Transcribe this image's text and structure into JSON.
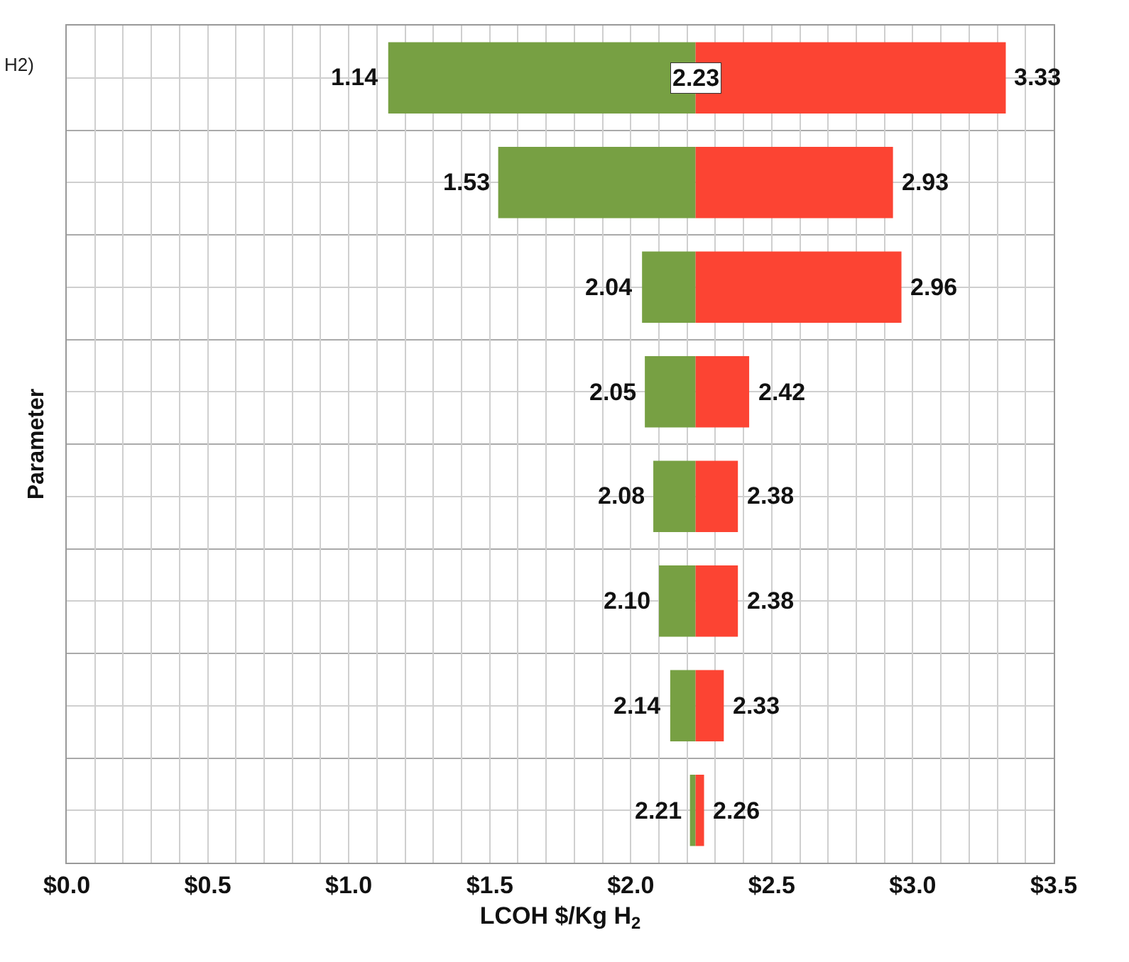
{
  "chart_data": {
    "type": "bar",
    "orientation": "horizontal",
    "stacked": false,
    "xlabel": "LCOH $/Kg H$_{2}$",
    "ylabel": "Parameter",
    "categories": [
      null,
      null,
      null,
      null,
      null,
      null,
      null,
      null
    ],
    "series": [
      {
        "color": "#77a043",
        "base": [
          2.23,
          2.23,
          2.23,
          2.23,
          2.23,
          2.23,
          2.23,
          2.23
        ],
        "values": [
          -1.09,
          -0.7,
          -0.19,
          -0.18,
          -0.15,
          -0.13,
          -0.09,
          -0.02
        ],
        "value_labels": [
          "1.14",
          "1.53",
          "2.04",
          "2.05",
          "2.08",
          "2.10",
          "2.14",
          "2.21"
        ]
      },
      {
        "color": "#fc4433",
        "base": [
          2.23,
          2.23,
          2.23,
          2.23,
          2.23,
          2.23,
          2.23,
          2.23
        ],
        "values": [
          1.1,
          0.7,
          0.73,
          0.19,
          0.15,
          0.15,
          0.1,
          0.03
        ],
        "value_labels": [
          "3.33",
          "2.93",
          "2.96",
          "2.42",
          "2.38",
          "2.38",
          "2.33",
          "2.26"
        ]
      }
    ],
    "annotations": [
      "H2)",
      {
        "text": "2.23",
        "x": 2.23
      }
    ],
    "xlim": [
      0,
      3.5
    ],
    "xticks": [
      {
        "value": 0,
        "label": "$0.0"
      },
      {
        "value": 0.1,
        "label": null
      },
      {
        "value": 0.2,
        "label": null
      },
      {
        "value": 0.3,
        "label": null
      },
      {
        "value": 0.4,
        "label": null
      },
      {
        "value": 0.5,
        "label": "$0.5"
      },
      {
        "value": 0.6,
        "label": null
      },
      {
        "value": 0.7,
        "label": null
      },
      {
        "value": 0.8,
        "label": null
      },
      {
        "value": 0.9,
        "label": null
      },
      {
        "value": 1.0,
        "label": "$1.0"
      },
      {
        "value": 1.1,
        "label": null
      },
      {
        "value": 1.2,
        "label": null
      },
      {
        "value": 1.3,
        "label": null
      },
      {
        "value": 1.4,
        "label": null
      },
      {
        "value": 1.5,
        "label": "$1.5"
      },
      {
        "value": 1.6,
        "label": null
      },
      {
        "value": 1.7,
        "label": null
      },
      {
        "value": 1.8,
        "label": null
      },
      {
        "value": 1.9,
        "label": null
      },
      {
        "value": 2.0,
        "label": "$2.0"
      },
      {
        "value": 2.1,
        "label": null
      },
      {
        "value": 2.2,
        "label": null
      },
      {
        "value": 2.3,
        "label": null
      },
      {
        "value": 2.4,
        "label": null
      },
      {
        "value": 2.5,
        "label": "$2.5"
      },
      {
        "value": 2.6,
        "label": null
      },
      {
        "value": 2.7,
        "label": null
      },
      {
        "value": 2.8,
        "label": null
      },
      {
        "value": 2.9,
        "label": null
      },
      {
        "value": 3.0,
        "label": "$3.0"
      },
      {
        "value": 3.1,
        "label": null
      },
      {
        "value": 3.2,
        "label": null
      },
      {
        "value": 3.3,
        "label": null
      },
      {
        "value": 3.4,
        "label": null
      },
      {
        "value": 3.5,
        "label": "$3.5"
      }
    ],
    "grid": true
  }
}
